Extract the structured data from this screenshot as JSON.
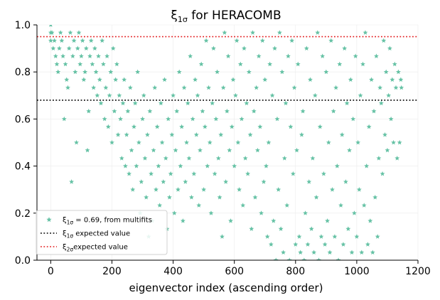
{
  "chart_data": {
    "type": "scatter",
    "title_prefix": "ξ",
    "title_sub": "1σ",
    "title_suffix": " for HERACOMB",
    "xlabel": "eigenvector index (ascending order)",
    "ylabel": "",
    "xlim": [
      -45,
      1200
    ],
    "ylim": [
      0,
      1.0
    ],
    "xticks": [
      0,
      200,
      400,
      600,
      800,
      1000,
      1200
    ],
    "yticks": [
      0.0,
      0.2,
      0.4,
      0.6,
      0.8,
      1.0
    ],
    "xtick_labels": [
      "0",
      "200",
      "400",
      "600",
      "800",
      "1000",
      "1200"
    ],
    "ytick_labels": [
      "0.0",
      "0.2",
      "0.4",
      "0.6",
      "0.8",
      "1.0"
    ],
    "grid": true,
    "legend_position": "lower-left",
    "colors": {
      "points": "#66c2a5",
      "expected_1sigma": "#000000",
      "expected_2sigma": "#e31a1c"
    },
    "hlines": [
      {
        "y": 0.68,
        "style": "dotted",
        "color": "#000000"
      },
      {
        "y": 0.95,
        "style": "dotted",
        "color": "#e31a1c"
      }
    ],
    "legend": [
      {
        "marker": "star",
        "sym": "ξ",
        "sub": "1σ",
        "text": " = 0.69, from multifits"
      },
      {
        "marker": "dotted-black",
        "sym": "ξ",
        "sub": "1σ",
        "text": " expected value"
      },
      {
        "marker": "dotted-red",
        "sym": "ξ",
        "sub": "2σ",
        "text": "expected value"
      }
    ],
    "series": [
      {
        "x_range": [
          0,
          1146
        ],
        "x_step": 4,
        "points": [
          [
            0,
            1.0
          ],
          [
            0,
            0.967
          ],
          [
            0,
            0.933
          ],
          [
            4,
            0.967
          ],
          [
            8,
            0.9
          ],
          [
            12,
            0.933
          ],
          [
            16,
            0.867
          ],
          [
            20,
            0.833
          ],
          [
            24,
            0.8
          ],
          [
            28,
            0.9
          ],
          [
            32,
            0.967
          ],
          [
            36,
            0.933
          ],
          [
            40,
            0.867
          ],
          [
            44,
            0.6
          ],
          [
            48,
            0.833
          ],
          [
            52,
            0.767
          ],
          [
            56,
            0.733
          ],
          [
            60,
            0.9
          ],
          [
            64,
            0.967
          ],
          [
            68,
            0.333
          ],
          [
            72,
            0.867
          ],
          [
            76,
            0.933
          ],
          [
            80,
            0.8
          ],
          [
            84,
            0.5
          ],
          [
            88,
            0.9
          ],
          [
            92,
            0.967
          ],
          [
            96,
            0.833
          ],
          [
            100,
            0.867
          ],
          [
            104,
            0.933
          ],
          [
            108,
            0.767
          ],
          [
            112,
            0.8
          ],
          [
            116,
            0.9
          ],
          [
            120,
            0.467
          ],
          [
            124,
            0.633
          ],
          [
            128,
            0.867
          ],
          [
            132,
            0.933
          ],
          [
            136,
            0.833
          ],
          [
            140,
            0.733
          ],
          [
            144,
            0.9
          ],
          [
            148,
            0.8
          ],
          [
            152,
            0.7
          ],
          [
            156,
            0.867
          ],
          [
            160,
            0.767
          ],
          [
            164,
            0.667
          ],
          [
            168,
            0.933
          ],
          [
            172,
            0.833
          ],
          [
            176,
            0.6
          ],
          [
            180,
            0.733
          ],
          [
            184,
            0.867
          ],
          [
            188,
            0.567
          ],
          [
            192,
            0.7
          ],
          [
            196,
            0.8
          ],
          [
            200,
            0.5
          ],
          [
            204,
            0.9
          ],
          [
            208,
            0.633
          ],
          [
            212,
            0.767
          ],
          [
            216,
            0.833
          ],
          [
            220,
            0.533
          ],
          [
            224,
            0.7
          ],
          [
            228,
            0.6
          ],
          [
            232,
            0.433
          ],
          [
            236,
            0.667
          ],
          [
            240,
            0.767
          ],
          [
            244,
            0.4
          ],
          [
            248,
            0.533
          ],
          [
            252,
            0.633
          ],
          [
            256,
            0.367
          ],
          [
            260,
            0.733
          ],
          [
            264,
            0.467
          ],
          [
            268,
            0.3
          ],
          [
            272,
            0.567
          ],
          [
            276,
            0.667
          ],
          [
            280,
            0.4
          ],
          [
            284,
            0.8
          ],
          [
            288,
            0.5
          ],
          [
            292,
            0.2
          ],
          [
            296,
            0.333
          ],
          [
            300,
            0.6
          ],
          [
            304,
            0.7
          ],
          [
            308,
            0.433
          ],
          [
            312,
            0.267
          ],
          [
            316,
            0.533
          ],
          [
            320,
            0.1
          ],
          [
            324,
            0.633
          ],
          [
            328,
            0.367
          ],
          [
            332,
            0.167
          ],
          [
            336,
            0.467
          ],
          [
            340,
            0.733
          ],
          [
            344,
            0.3
          ],
          [
            348,
            0.567
          ],
          [
            352,
            0.4
          ],
          [
            356,
            0.233
          ],
          [
            360,
            0.667
          ],
          [
            364,
            0.5
          ],
          [
            368,
            0.333
          ],
          [
            372,
            0.767
          ],
          [
            376,
            0.433
          ],
          [
            380,
            0.133
          ],
          [
            384,
            0.6
          ],
          [
            388,
            0.267
          ],
          [
            392,
            0.367
          ],
          [
            396,
            0.533
          ],
          [
            400,
            0.7
          ],
          [
            404,
            0.2
          ],
          [
            408,
            0.467
          ],
          [
            412,
            0.633
          ],
          [
            416,
            0.3
          ],
          [
            420,
            0.8
          ],
          [
            424,
            0.4
          ],
          [
            428,
            0.567
          ],
          [
            432,
            0.167
          ],
          [
            436,
            0.733
          ],
          [
            440,
            0.333
          ],
          [
            444,
            0.5
          ],
          [
            448,
            0.667
          ],
          [
            452,
            0.433
          ],
          [
            456,
            0.867
          ],
          [
            460,
            0.267
          ],
          [
            464,
            0.6
          ],
          [
            468,
            0.367
          ],
          [
            472,
            0.767
          ],
          [
            476,
            0.533
          ],
          [
            480,
            0.7
          ],
          [
            484,
            0.233
          ],
          [
            488,
            0.467
          ],
          [
            492,
            0.833
          ],
          [
            496,
            0.633
          ],
          [
            500,
            0.3
          ],
          [
            504,
            0.567
          ],
          [
            508,
            0.933
          ],
          [
            512,
            0.4
          ],
          [
            516,
            0.733
          ],
          [
            520,
            0.5
          ],
          [
            524,
            0.2
          ],
          [
            528,
            0.667
          ],
          [
            532,
            0.9
          ],
          [
            536,
            0.367
          ],
          [
            540,
            0.6
          ],
          [
            544,
            0.8
          ],
          [
            548,
            0.433
          ],
          [
            552,
            0.267
          ],
          [
            556,
            0.533
          ],
          [
            560,
            0.1
          ],
          [
            564,
            0.733
          ],
          [
            568,
            0.967
          ],
          [
            572,
            0.333
          ],
          [
            576,
            0.633
          ],
          [
            580,
            0.867
          ],
          [
            584,
            0.467
          ],
          [
            588,
            0.167
          ],
          [
            592,
            0.567
          ],
          [
            596,
            0.767
          ],
          [
            600,
            0.4
          ],
          [
            604,
            0.7
          ],
          [
            608,
            0.933
          ],
          [
            612,
            0.5
          ],
          [
            616,
            0.3
          ],
          [
            620,
            0.833
          ],
          [
            624,
            0.6
          ],
          [
            628,
            0.233
          ],
          [
            632,
            0.9
          ],
          [
            636,
            0.433
          ],
          [
            640,
            0.667
          ],
          [
            644,
            0.367
          ],
          [
            648,
            0.8
          ],
          [
            652,
            0.533
          ],
          [
            656,
            0.133
          ],
          [
            660,
            0.967
          ],
          [
            664,
            0.633
          ],
          [
            668,
            0.267
          ],
          [
            672,
            0.733
          ],
          [
            676,
            0.467
          ],
          [
            680,
            0.867
          ],
          [
            684,
            0.567
          ],
          [
            688,
            0.2
          ],
          [
            692,
            0.933
          ],
          [
            696,
            0.333
          ],
          [
            700,
            0.767
          ],
          [
            704,
            0.4
          ],
          [
            708,
            0.1
          ],
          [
            712,
            0.5
          ],
          [
            716,
            0.833
          ],
          [
            720,
            0.067
          ],
          [
            724,
            0.7
          ],
          [
            728,
            0.167
          ],
          [
            732,
            0.9
          ],
          [
            736,
            0.0
          ],
          [
            740,
            0.6
          ],
          [
            744,
            0.3
          ],
          [
            748,
            0.967
          ],
          [
            752,
            0.133
          ],
          [
            756,
            0.8
          ],
          [
            760,
            0.033
          ],
          [
            764,
            0.433
          ],
          [
            768,
            0.667
          ],
          [
            772,
            0.233
          ],
          [
            776,
            0.867
          ],
          [
            780,
            0.0
          ],
          [
            784,
            0.567
          ],
          [
            788,
            0.933
          ],
          [
            792,
            0.367
          ],
          [
            796,
            0.733
          ],
          [
            800,
            0.067
          ],
          [
            804,
            0.467
          ],
          [
            808,
            0.833
          ],
          [
            812,
            0.1
          ],
          [
            816,
            0.033
          ],
          [
            820,
            0.533
          ],
          [
            824,
            0.633
          ],
          [
            828,
            0.0
          ],
          [
            832,
            0.2
          ],
          [
            836,
            0.9
          ],
          [
            840,
            0.067
          ],
          [
            844,
            0.333
          ],
          [
            848,
            0.767
          ],
          [
            852,
            0.133
          ],
          [
            856,
            0.433
          ],
          [
            860,
            0.033
          ],
          [
            864,
            0.7
          ],
          [
            868,
            0.267
          ],
          [
            872,
            0.967
          ],
          [
            876,
            0.0
          ],
          [
            880,
            0.567
          ],
          [
            884,
            0.1
          ],
          [
            888,
            0.867
          ],
          [
            892,
            0.367
          ],
          [
            896,
            0.067
          ],
          [
            900,
            0.8
          ],
          [
            904,
            0.167
          ],
          [
            908,
            0.5
          ],
          [
            912,
            0.033
          ],
          [
            916,
            0.933
          ],
          [
            920,
            0.3
          ],
          [
            924,
            0.633
          ],
          [
            928,
            0.1
          ],
          [
            932,
            0.733
          ],
          [
            936,
            0.4
          ],
          [
            940,
            0.0
          ],
          [
            944,
            0.833
          ],
          [
            948,
            0.233
          ],
          [
            952,
            0.533
          ],
          [
            956,
            0.067
          ],
          [
            960,
            0.9
          ],
          [
            964,
            0.333
          ],
          [
            968,
            0.667
          ],
          [
            972,
            0.133
          ],
          [
            976,
            0.467
          ],
          [
            980,
            0.767
          ],
          [
            984,
            0.033
          ],
          [
            988,
            0.6
          ],
          [
            992,
            0.2
          ],
          [
            996,
            0.867
          ],
          [
            1000,
            0.1
          ],
          [
            1004,
            0.5
          ],
          [
            1008,
            0.3
          ],
          [
            1012,
            0.7
          ],
          [
            1016,
            0.033
          ],
          [
            1020,
            0.833
          ],
          [
            1024,
            0.233
          ],
          [
            1028,
            0.967
          ],
          [
            1032,
            0.4
          ],
          [
            1036,
            0.067
          ],
          [
            1040,
            0.567
          ],
          [
            1044,
            0.167
          ],
          [
            1048,
            0.767
          ],
          [
            1052,
            0.033
          ],
          [
            1056,
            0.633
          ],
          [
            1060,
            0.267
          ],
          [
            1064,
            0.867
          ],
          [
            1068,
            0.1
          ],
          [
            1072,
            0.433
          ],
          [
            1076,
            0.733
          ],
          [
            1080,
            0.667
          ],
          [
            1084,
            0.367
          ],
          [
            1088,
            0.933
          ],
          [
            1092,
            0.533
          ],
          [
            1096,
            0.8
          ],
          [
            1100,
            0.467
          ],
          [
            1104,
            0.7
          ],
          [
            1108,
            0.9
          ],
          [
            1112,
            0.6
          ],
          [
            1116,
            0.767
          ],
          [
            1120,
            0.5
          ],
          [
            1124,
            0.833
          ],
          [
            1128,
            0.733
          ],
          [
            1132,
            0.433
          ],
          [
            1136,
            0.8
          ],
          [
            1140,
            0.5
          ],
          [
            1144,
            0.767
          ],
          [
            1146,
            0.733
          ]
        ]
      }
    ]
  }
}
